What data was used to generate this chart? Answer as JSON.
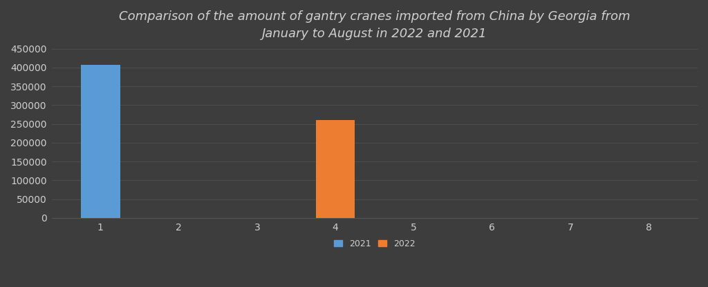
{
  "title": "Comparison of the amount of gantry cranes imported from China by Georgia from\nJanuary to August in 2022 and 2021",
  "background_color": "#3d3d3d",
  "text_color": "#d0d0d0",
  "grid_color": "#555555",
  "months": [
    1,
    2,
    3,
    4,
    5,
    6,
    7,
    8
  ],
  "values_2021": [
    408000,
    0,
    0,
    0,
    0,
    0,
    0,
    0
  ],
  "values_2022": [
    0,
    0,
    0,
    260000,
    0,
    0,
    0,
    0
  ],
  "color_2021": "#5b9bd5",
  "color_2022": "#ed7d31",
  "ylim": [
    0,
    450000
  ],
  "yticks": [
    0,
    50000,
    100000,
    150000,
    200000,
    250000,
    300000,
    350000,
    400000,
    450000
  ],
  "bar_width": 0.5,
  "legend_labels": [
    "2021",
    "2022"
  ],
  "title_fontsize": 13,
  "tick_fontsize": 10,
  "legend_fontsize": 9
}
